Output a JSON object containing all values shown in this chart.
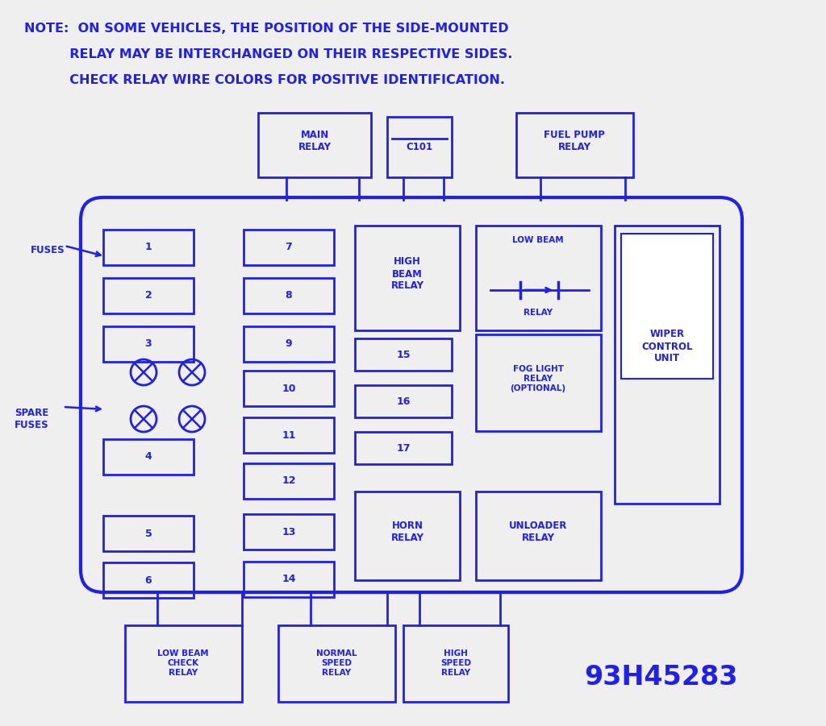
{
  "bg_color": "#efefef",
  "blue": "#2020ee",
  "lw": 2.0,
  "part_number": "93H45283",
  "note_line1": "NOTE:  ON SOME VEHICLES, THE POSITION OF THE SIDE-MOUNTED",
  "note_line2": "          RELAY MAY BE INTERCHANGED ON THEIR RESPECTIVE SIDES.",
  "note_line3": "          CHECK RELAY WIRE COLORS FOR POSITIVE IDENTIFICATION.",
  "note_fontsize": 11.5,
  "label_fontsize": 8.5,
  "small_fontsize": 7.5,
  "num_fontsize": 9
}
